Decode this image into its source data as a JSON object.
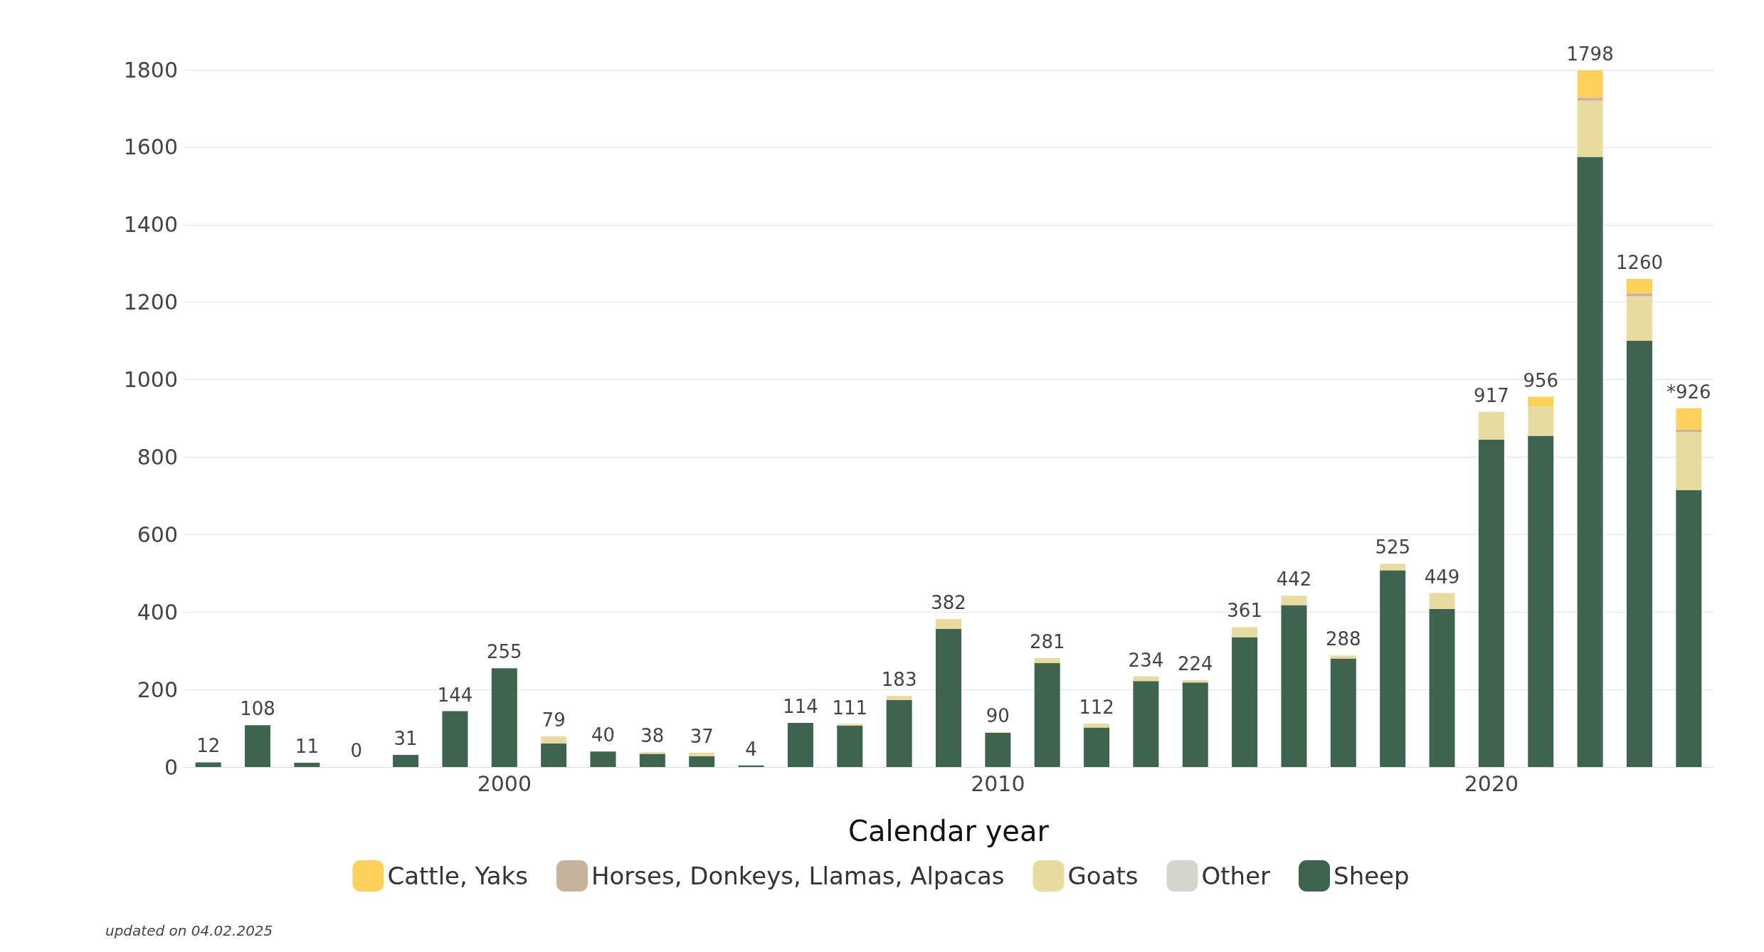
{
  "chart_data": {
    "type": "bar",
    "stacked": true,
    "xlabel": "Calendar year",
    "categories": [
      null,
      null,
      null,
      null,
      null,
      null,
      "2000",
      null,
      null,
      null,
      null,
      null,
      null,
      null,
      null,
      null,
      "2010",
      null,
      null,
      null,
      null,
      null,
      null,
      null,
      null,
      null,
      "2020",
      null,
      null,
      null,
      null
    ],
    "ylim": [
      0,
      1800
    ],
    "yticks": [
      0,
      200,
      400,
      600,
      800,
      1000,
      1200,
      1400,
      1600,
      1800
    ],
    "series": [
      {
        "name": "Sheep",
        "color": "#3e634e",
        "values": [
          12,
          108,
          11,
          0,
          31,
          144,
          255,
          61,
          40,
          34,
          28,
          4,
          114,
          107,
          173,
          357,
          88,
          268,
          102,
          222,
          218,
          335,
          418,
          280,
          508,
          408,
          845,
          855,
          1575,
          1100,
          715
        ]
      },
      {
        "name": "Other",
        "color": "#d5d5d0",
        "values": [
          0,
          0,
          0,
          0,
          0,
          0,
          0,
          0,
          0,
          0,
          0,
          0,
          0,
          0,
          0,
          0,
          0,
          0,
          0,
          0,
          0,
          0,
          0,
          0,
          0,
          0,
          0,
          0,
          0,
          0,
          0
        ]
      },
      {
        "name": "Goats",
        "color": "#e8dba0",
        "values": [
          0,
          0,
          0,
          0,
          0,
          0,
          0,
          18,
          0,
          4,
          9,
          0,
          0,
          4,
          10,
          25,
          2,
          13,
          10,
          12,
          6,
          26,
          24,
          8,
          17,
          41,
          72,
          76,
          145,
          115,
          150
        ]
      },
      {
        "name": "Horses, Donkeys, Llamas, Alpacas",
        "color": "#c8b29b",
        "values": [
          0,
          0,
          0,
          0,
          0,
          0,
          0,
          0,
          0,
          0,
          0,
          0,
          0,
          0,
          0,
          0,
          0,
          0,
          0,
          0,
          0,
          0,
          0,
          0,
          0,
          0,
          0,
          0,
          8,
          8,
          6
        ]
      },
      {
        "name": "Cattle, Yaks",
        "color": "#fcd15b",
        "values": [
          0,
          0,
          0,
          0,
          0,
          0,
          0,
          0,
          0,
          0,
          0,
          0,
          0,
          0,
          0,
          0,
          0,
          0,
          0,
          0,
          0,
          0,
          0,
          0,
          0,
          0,
          0,
          25,
          70,
          37,
          55
        ]
      }
    ],
    "totals": [
      "12",
      "108",
      "11",
      "0",
      "31",
      "144",
      "255",
      "79",
      "40",
      "38",
      "37",
      "4",
      "114",
      "111",
      "183",
      "382",
      "90",
      "281",
      "112",
      "234",
      "224",
      "361",
      "442",
      "288",
      "525",
      "449",
      "917",
      "956",
      "1798",
      "1260",
      "*926"
    ],
    "grid": "y",
    "legend": "bottom",
    "annotations": [
      "updated on 04.02.2025"
    ]
  }
}
